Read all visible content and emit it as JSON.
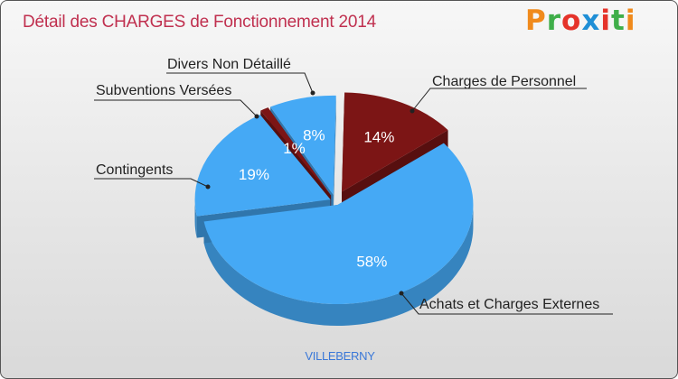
{
  "header": {
    "title": "Détail des CHARGES de Fonctionnement 2014",
    "brand": "Proxiti",
    "brand_colors": [
      "#f08a1c",
      "#3fae49",
      "#e5332a",
      "#1f8fd6",
      "#e5332a",
      "#3fae49",
      "#f08a1c"
    ]
  },
  "footer": {
    "commune": "VILLEBERNY"
  },
  "colors": {
    "blue": "#45a9f5",
    "red": "#7c1515",
    "title": "#c0304f",
    "commune": "#3a78d8"
  },
  "chart_data": {
    "type": "pie",
    "title": "Détail des CHARGES de Fonctionnement 2014",
    "unit": "%",
    "slices": [
      {
        "label": "Charges de Personnel",
        "value": 14,
        "display": "14%",
        "color": "#7c1515"
      },
      {
        "label": "Achats et Charges Externes",
        "value": 58,
        "display": "58%",
        "color": "#45a9f5"
      },
      {
        "label": "Contingents",
        "value": 19,
        "display": "19%",
        "color": "#45a9f5"
      },
      {
        "label": "Subventions Versées",
        "value": 1,
        "display": "1%",
        "color": "#7c1515"
      },
      {
        "label": "Divers Non Détaillé",
        "value": 8,
        "display": "8%",
        "color": "#45a9f5"
      }
    ]
  }
}
